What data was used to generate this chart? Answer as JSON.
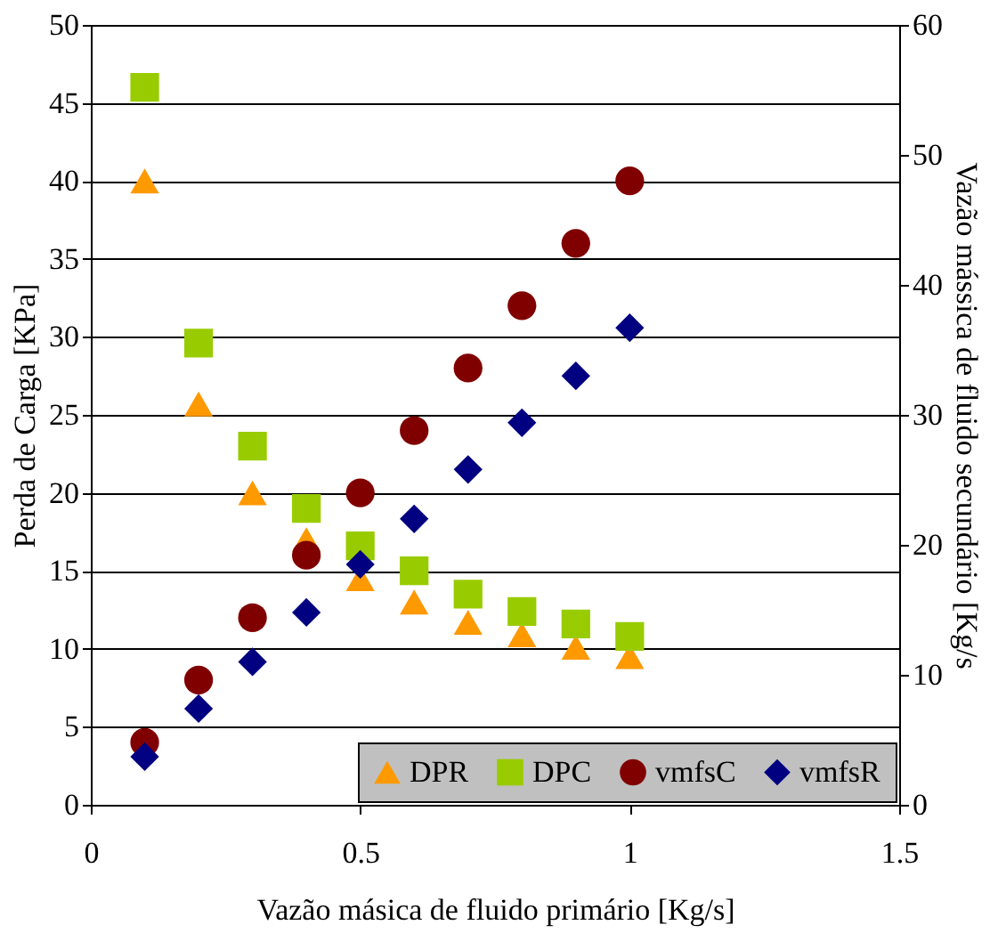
{
  "chart_data": {
    "type": "scatter",
    "xlabel": "Vazão másica de fluido primário [Kg/s]",
    "ylabel": "Perda de Carga [KPa]",
    "y2label": "Vazão mássica de fluido secundário [Kg/s",
    "x": [
      0.1,
      0.2,
      0.3,
      0.4,
      0.5,
      0.6,
      0.7,
      0.8,
      0.9,
      1.0
    ],
    "series": [
      {
        "name": "DPR",
        "color": "#ff9900",
        "marker": "triangle",
        "values": [
          40,
          25.7,
          20,
          17,
          14.5,
          13,
          11.7,
          10.9,
          10.1,
          9.5
        ]
      },
      {
        "name": "DPC",
        "color": "#99cc00",
        "marker": "square",
        "values": [
          46,
          29.6,
          23,
          19,
          16.6,
          15,
          13.5,
          12.4,
          11.6,
          10.8
        ]
      },
      {
        "name": "vmfsC",
        "color": "#800000",
        "marker": "circle",
        "axis": "y2",
        "values": [
          4.8,
          9.6,
          14.4,
          19.2,
          24,
          28.8,
          33.6,
          38.4,
          43.2,
          48
        ]
      },
      {
        "name": "vmfsR",
        "color": "#000080",
        "marker": "diamond",
        "axis": "y2",
        "values": [
          3.7,
          7.4,
          11,
          14.8,
          18.5,
          22,
          25.8,
          29.4,
          33,
          36.7
        ]
      }
    ],
    "xlim": [
      0,
      1.5
    ],
    "xticks": [
      0,
      0.5,
      1,
      1.5
    ],
    "ylim": [
      0,
      50
    ],
    "yticks": [
      0,
      5,
      10,
      15,
      20,
      25,
      30,
      35,
      40,
      45,
      50
    ],
    "y2lim": [
      0,
      60
    ],
    "y2ticks": [
      0,
      10,
      20,
      30,
      40,
      50,
      60
    ],
    "grid": "y",
    "legend": "bottom right"
  }
}
